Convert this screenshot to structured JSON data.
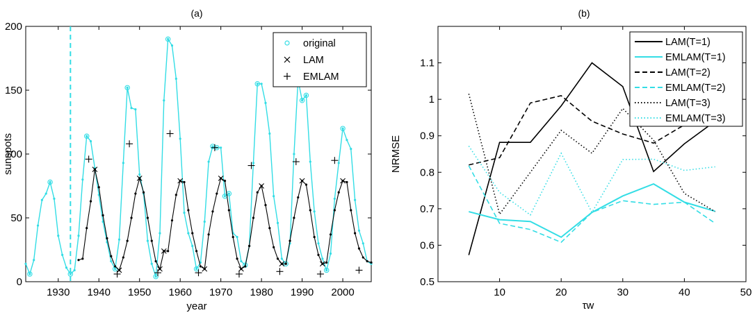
{
  "colors": {
    "cyan": "#33dde5",
    "black": "#000000"
  },
  "chart_data": [
    {
      "type": "line",
      "title": "(a)",
      "xlabel": "year",
      "ylabel": "sunspots",
      "xlim": [
        1922,
        2007
      ],
      "ylim": [
        0,
        200
      ],
      "xticks": [
        1930,
        1940,
        1950,
        1960,
        1970,
        1980,
        1990,
        2000
      ],
      "yticks": [
        0,
        50,
        100,
        150,
        200
      ],
      "vline": {
        "x": 1933,
        "style": "dashed",
        "color": "#33dde5"
      },
      "legend": {
        "position": "top-right",
        "entries": [
          "original",
          "LAM",
          "EMLAM"
        ]
      },
      "series": [
        {
          "name": "original",
          "color": "#33dde5",
          "x": [
            1922,
            1923,
            1924,
            1925,
            1926,
            1927,
            1928,
            1929,
            1930,
            1931,
            1932,
            1933,
            1934,
            1935,
            1936,
            1937,
            1938,
            1939,
            1940,
            1941,
            1942,
            1943,
            1944,
            1945,
            1946,
            1947,
            1948,
            1949,
            1950,
            1951,
            1952,
            1953,
            1954,
            1955,
            1956,
            1957,
            1958,
            1959,
            1960,
            1961,
            1962,
            1963,
            1964,
            1965,
            1966,
            1967,
            1968,
            1969,
            1970,
            1971,
            1972,
            1973,
            1974,
            1975,
            1976,
            1977,
            1978,
            1979,
            1980,
            1981,
            1982,
            1983,
            1984,
            1985,
            1986,
            1987,
            1988,
            1989,
            1990,
            1991,
            1992,
            1993,
            1994,
            1995,
            1996,
            1997,
            1998,
            1999,
            2000,
            2001,
            2002,
            2003,
            2004,
            2005,
            2006,
            2007
          ],
          "y": [
            14,
            6,
            17,
            44,
            64,
            69,
            78,
            65,
            36,
            21,
            11,
            6,
            9,
            36,
            80,
            114,
            110,
            89,
            68,
            47,
            31,
            16,
            10,
            33,
            93,
            152,
            136,
            135,
            84,
            69,
            32,
            14,
            4,
            38,
            142,
            190,
            185,
            159,
            112,
            54,
            38,
            28,
            10,
            15,
            47,
            94,
            106,
            105,
            105,
            67,
            69,
            38,
            35,
            16,
            13,
            28,
            93,
            155,
            155,
            140,
            116,
            67,
            46,
            18,
            14,
            30,
            100,
            158,
            142,
            146,
            94,
            55,
            30,
            18,
            9,
            22,
            65,
            93,
            120,
            111,
            104,
            64,
            40,
            30,
            16,
            14
          ]
        },
        {
          "name": "LAM",
          "color": "#000000",
          "x": [
            1935,
            1936,
            1937,
            1938,
            1939,
            1940,
            1941,
            1942,
            1943,
            1944,
            1945,
            1946,
            1947,
            1948,
            1949,
            1950,
            1951,
            1952,
            1953,
            1954,
            1955,
            1956,
            1957,
            1958,
            1959,
            1960,
            1961,
            1962,
            1963,
            1964,
            1965,
            1966,
            1967,
            1968,
            1969,
            1970,
            1971,
            1972,
            1973,
            1974,
            1975,
            1976,
            1977,
            1978,
            1979,
            1980,
            1981,
            1982,
            1983,
            1984,
            1985,
            1986,
            1987,
            1988,
            1989,
            1990,
            1991,
            1992,
            1993,
            1994,
            1995,
            1996,
            1997,
            1998,
            1999,
            2000,
            2001,
            2002,
            2003,
            2004,
            2005,
            2006,
            2007
          ],
          "y": [
            17,
            18,
            42,
            63,
            88,
            74,
            52,
            34,
            20,
            12,
            9,
            19,
            32,
            50,
            69,
            81,
            70,
            50,
            32,
            16,
            10,
            24,
            24,
            48,
            68,
            79,
            78,
            56,
            38,
            24,
            12,
            10,
            37,
            55,
            69,
            81,
            79,
            56,
            35,
            18,
            10,
            12,
            28,
            50,
            70,
            75,
            60,
            42,
            27,
            18,
            14,
            14,
            32,
            50,
            66,
            79,
            76,
            56,
            35,
            21,
            14,
            15,
            37,
            56,
            70,
            79,
            78,
            56,
            38,
            26,
            19,
            16,
            15
          ]
        },
        {
          "name": "EMLAM",
          "color": "#000000",
          "x": [
            1937.5,
            1944.5,
            1947.5,
            1954.5,
            1957.5,
            1964.5,
            1968.5,
            1974.5,
            1977.5,
            1984.5,
            1988.5,
            1994.5,
            1998,
            2004
          ],
          "y": [
            96,
            6,
            108,
            7,
            116,
            7,
            105,
            6,
            91,
            8,
            94,
            6,
            95,
            9
          ]
        }
      ]
    },
    {
      "type": "line",
      "title": "(b)",
      "xlabel": "τw",
      "ylabel": "NRMSE",
      "xlim": [
        0,
        50
      ],
      "ylim": [
        0.5,
        1.2
      ],
      "xticks": [
        10,
        20,
        30,
        40,
        50
      ],
      "yticks": [
        0.5,
        0.6,
        0.7,
        0.8,
        0.9,
        1,
        1.1
      ],
      "legend": {
        "position": "top-right",
        "entries": [
          "LAM(T=1)",
          "EMLAM(T=1)",
          "LAM(T=2)",
          "EMLAM(T=2)",
          "LAM(T=3)",
          "EMLAM(T=3)"
        ]
      },
      "series": [
        {
          "name": "LAM(T=1)",
          "color": "#000000",
          "style": "solid",
          "x": [
            5,
            10,
            15,
            20,
            25,
            30,
            35,
            40,
            45
          ],
          "y": [
            0.573,
            0.882,
            0.882,
            0.982,
            1.1,
            1.035,
            0.802,
            0.878,
            0.94
          ]
        },
        {
          "name": "EMLAM(T=1)",
          "color": "#33dde5",
          "style": "solid",
          "x": [
            5,
            10,
            15,
            20,
            25,
            30,
            35,
            40,
            45
          ],
          "y": [
            0.692,
            0.67,
            0.665,
            0.622,
            0.69,
            0.735,
            0.768,
            0.718,
            0.693
          ]
        },
        {
          "name": "LAM(T=2)",
          "color": "#000000",
          "style": "dashed",
          "x": [
            5,
            10,
            15,
            20,
            25,
            30,
            35,
            40,
            45
          ],
          "y": [
            0.82,
            0.84,
            0.99,
            1.01,
            0.94,
            0.905,
            0.88,
            0.93,
            0.95
          ]
        },
        {
          "name": "EMLAM(T=2)",
          "color": "#33dde5",
          "style": "dashed",
          "x": [
            5,
            10,
            15,
            20,
            25,
            30,
            35,
            40,
            45
          ],
          "y": [
            0.818,
            0.66,
            0.643,
            0.608,
            0.69,
            0.722,
            0.712,
            0.718,
            0.66
          ]
        },
        {
          "name": "LAM(T=3)",
          "color": "#000000",
          "style": "dotted",
          "x": [
            5,
            10,
            15,
            20,
            25,
            30,
            35,
            40,
            45
          ],
          "y": [
            1.015,
            0.685,
            0.8,
            0.915,
            0.852,
            0.975,
            0.888,
            0.742,
            0.692
          ]
        },
        {
          "name": "EMLAM(T=3)",
          "color": "#33dde5",
          "style": "dotted",
          "x": [
            5,
            10,
            15,
            20,
            25,
            30,
            35,
            40,
            45
          ],
          "y": [
            0.872,
            0.745,
            0.683,
            0.852,
            0.69,
            0.835,
            0.836,
            0.805,
            0.815
          ]
        }
      ]
    }
  ]
}
